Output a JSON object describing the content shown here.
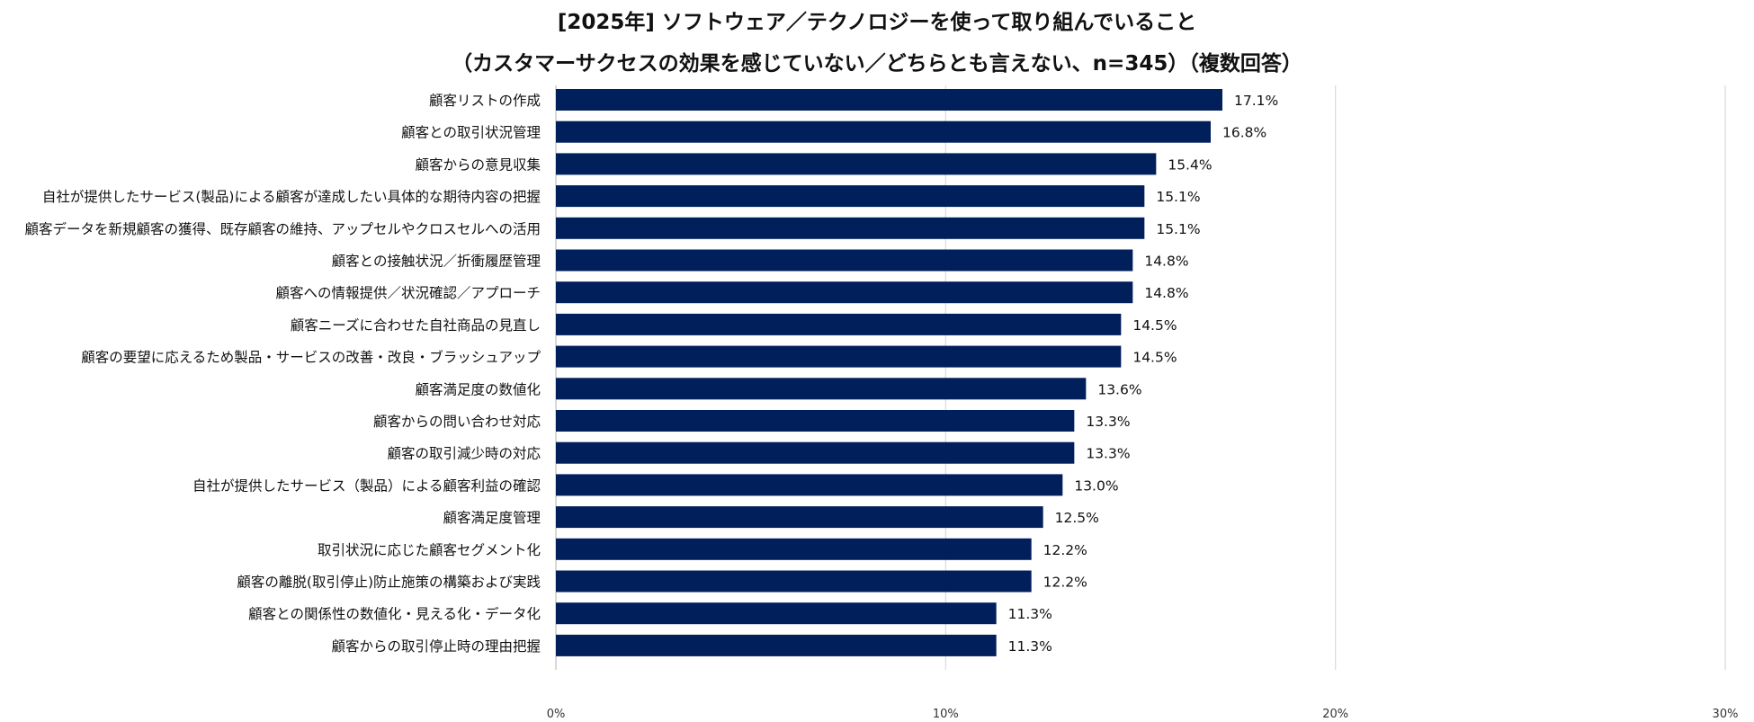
{
  "chart_data": {
    "type": "bar",
    "orientation": "horizontal",
    "title": "[2025年] ソフトウェア／テクノロジーを使って取り組んでいること",
    "subtitle": "（カスタマーサクセスの効果を感じていない／どちらとも言えない、n=345）（複数回答）",
    "xlabel": "",
    "ylabel": "",
    "xlim": [
      0,
      30
    ],
    "x_ticks": [
      0,
      10,
      20,
      30
    ],
    "x_tick_labels": [
      "0%",
      "10%",
      "20%",
      "30%"
    ],
    "grid": true,
    "bar_color": "#001f5b",
    "categories": [
      "顧客リストの作成",
      "顧客との取引状況管理",
      "顧客からの意見収集",
      "自社が提供したサービス(製品)による顧客が達成したい具体的な期待内容の把握",
      "顧客データを新規顧客の獲得、既存顧客の維持、アップセルやクロスセルへの活用",
      "顧客との接触状況／折衝履歴管理",
      "顧客への情報提供／状況確認／アプローチ",
      "顧客ニーズに合わせた自社商品の見直し",
      "顧客の要望に応えるため製品・サービスの改善・改良・ブラッシュアップ",
      "顧客満足度の数値化",
      "顧客からの問い合わせ対応",
      "顧客の取引減少時の対応",
      "自社が提供したサービス（製品）による顧客利益の確認",
      "顧客満足度管理",
      "取引状況に応じた顧客セグメント化",
      "顧客の離脱(取引停止)防止施策の構築および実践",
      "顧客との関係性の数値化・見える化・データ化",
      "顧客からの取引停止時の理由把握"
    ],
    "values": [
      17.1,
      16.8,
      15.4,
      15.1,
      15.1,
      14.8,
      14.8,
      14.5,
      14.5,
      13.6,
      13.3,
      13.3,
      13.0,
      12.5,
      12.2,
      12.2,
      11.3,
      11.3
    ],
    "value_labels": [
      "17.1%",
      "16.8%",
      "15.4%",
      "15.1%",
      "15.1%",
      "14.8%",
      "14.8%",
      "14.5%",
      "14.5%",
      "13.6%",
      "13.3%",
      "13.3%",
      "13.0%",
      "12.5%",
      "12.2%",
      "12.2%",
      "11.3%",
      "11.3%"
    ]
  }
}
